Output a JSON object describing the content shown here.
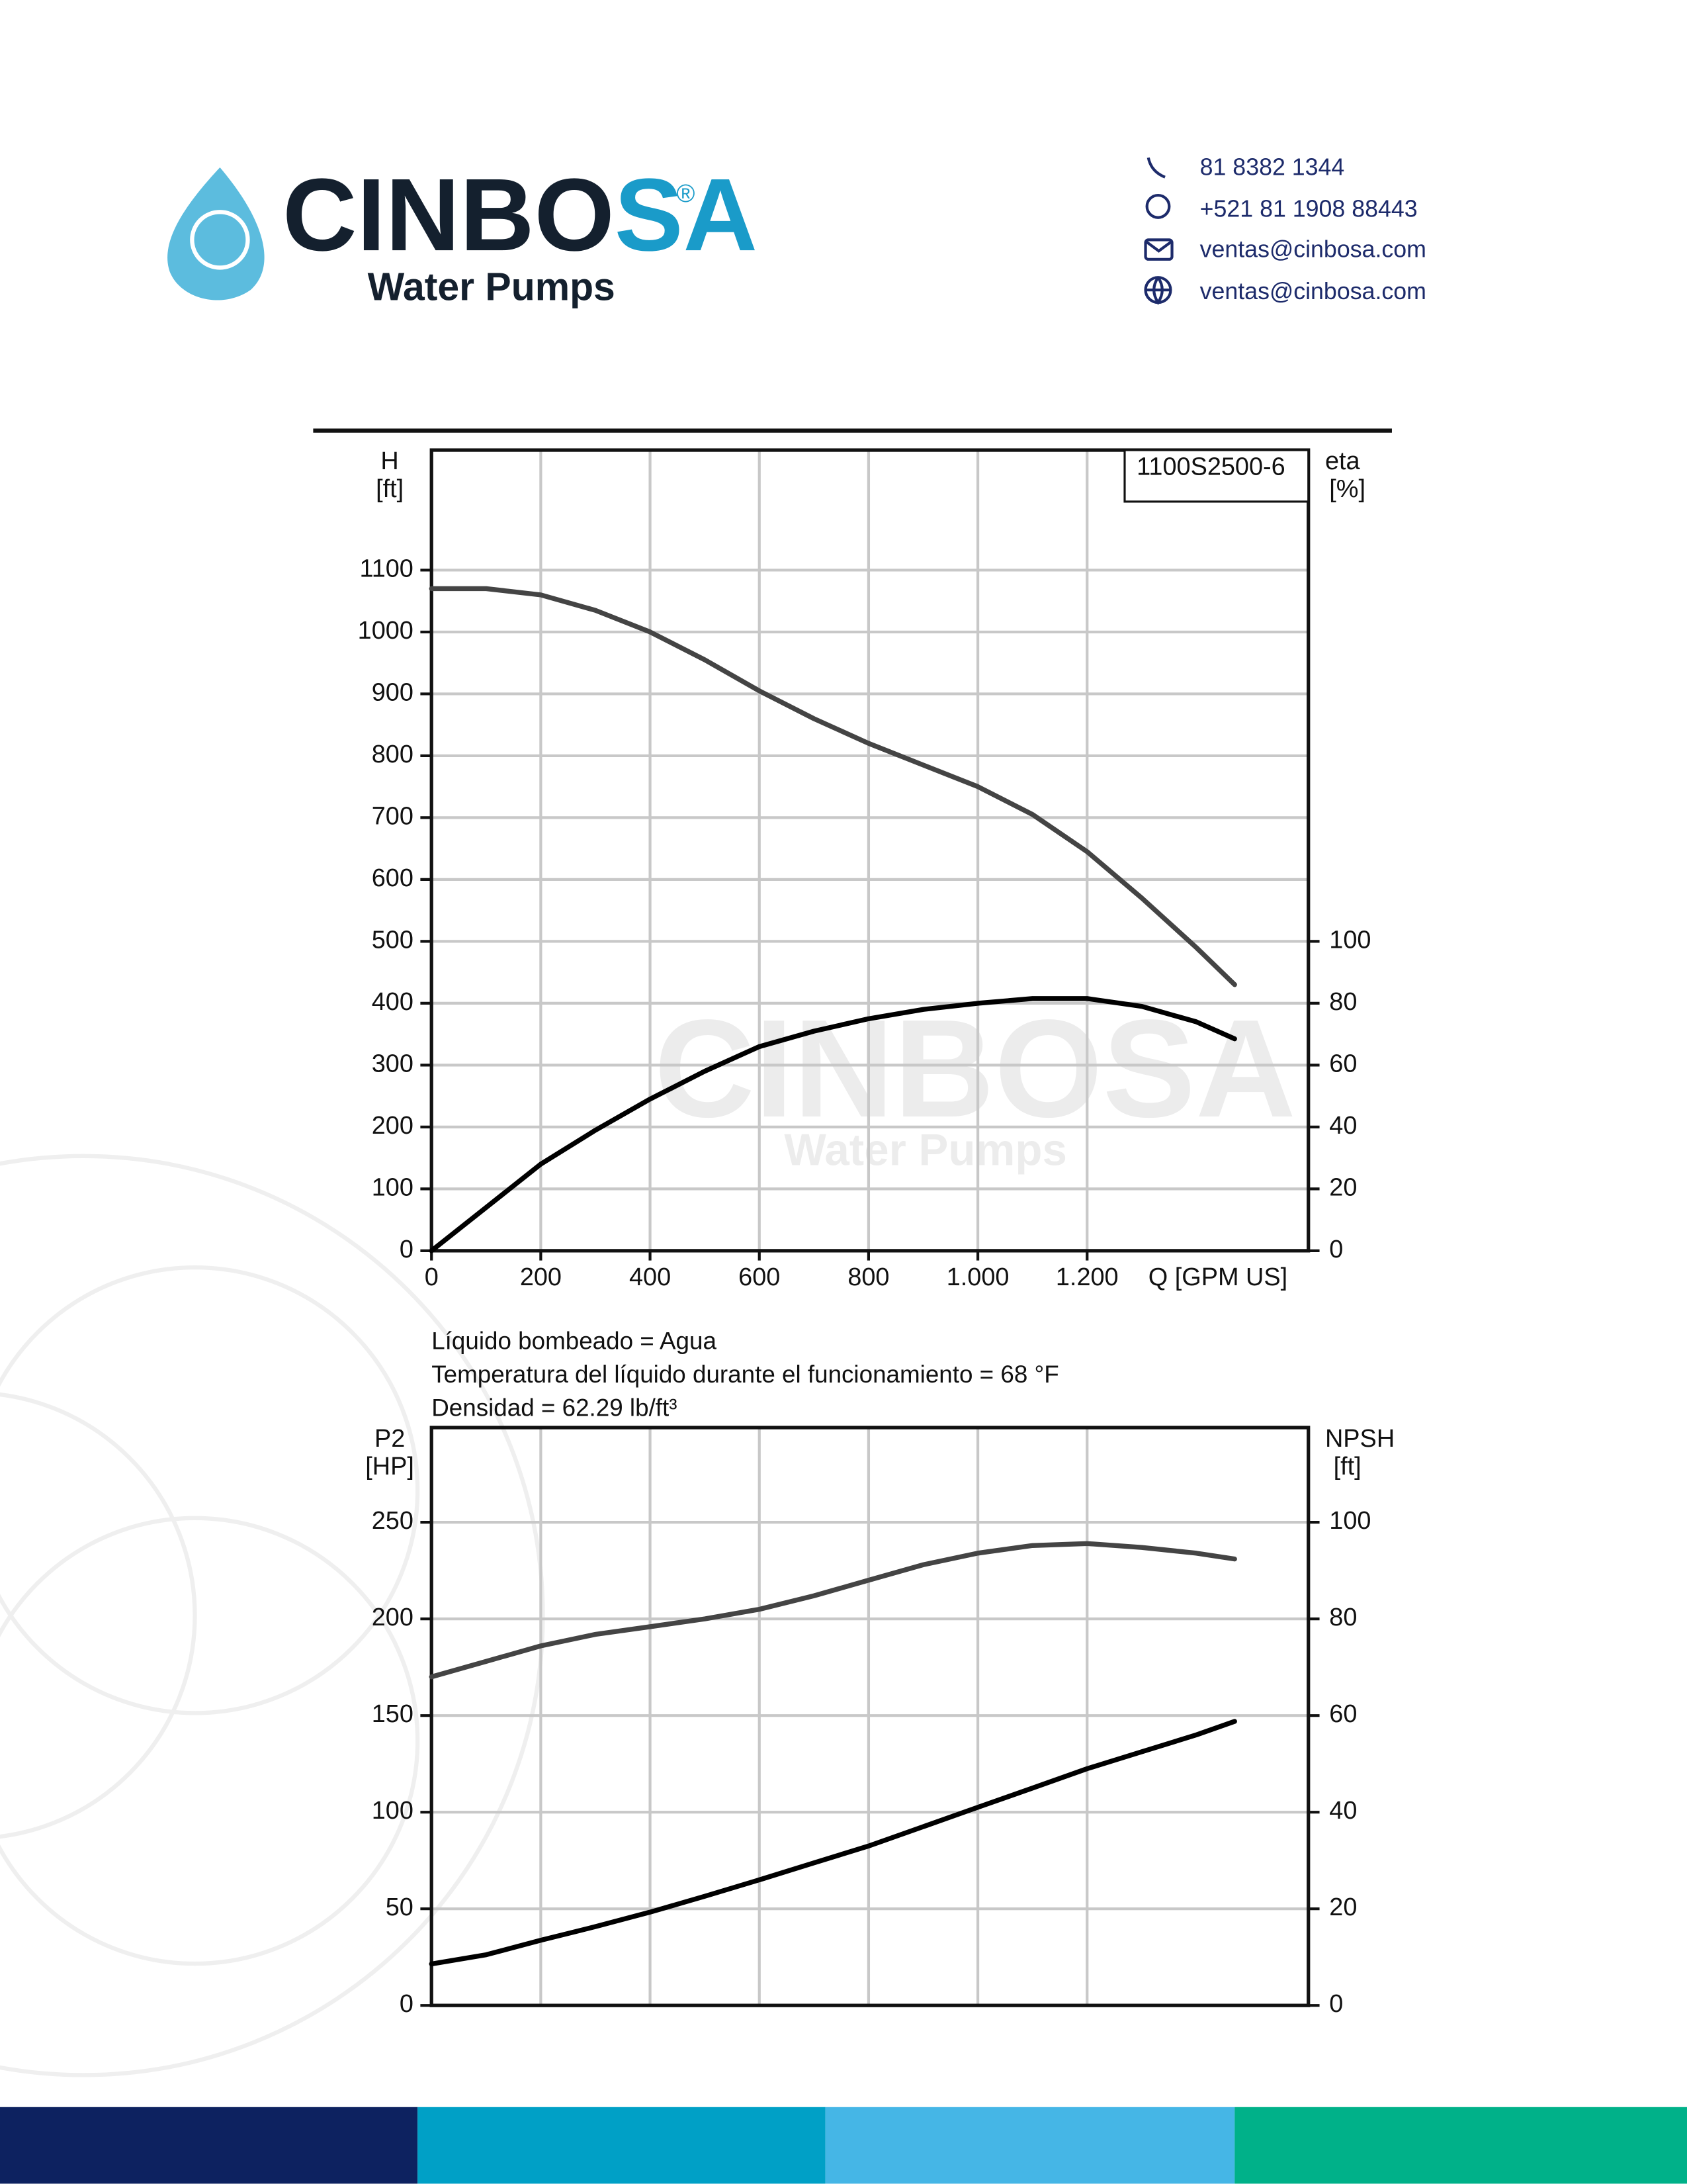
{
  "header": {
    "brand_parts": [
      "CINBO",
      "SA"
    ],
    "registered": "®",
    "tagline": "Water Pumps",
    "contacts": [
      "81 8382 1344",
      "+521 81 1908 88443",
      "ventas@cinbosa.com",
      "ventas@cinbosa.com"
    ]
  },
  "notes": [
    "Líquido bombeado = Agua",
    "Temperatura del líquido durante el funcionamiento = 68 °F",
    "Densidad = 62.29 lb/ft³"
  ],
  "chart_data": [
    {
      "type": "line",
      "label": "1100S2500-6",
      "xlabel": "Q [GPM US]",
      "yunit": "[ft]",
      "y2unit": "[%]",
      "x": [
        0,
        100,
        200,
        300,
        400,
        500,
        600,
        700,
        800,
        900,
        1000,
        1100,
        1200,
        1300,
        1400,
        1470
      ],
      "xlim": [
        0,
        1605
      ],
      "xticks": [
        0,
        200,
        400,
        600,
        800,
        {
          "value": 1000,
          "label": "1.000"
        },
        {
          "value": 1200,
          "label": "1.200"
        }
      ],
      "ylim": [
        0,
        1294
      ],
      "yticks": [
        0,
        100,
        200,
        300,
        400,
        500,
        600,
        700,
        800,
        900,
        1000,
        1100
      ],
      "y2lim": [
        0,
        258.8
      ],
      "y2ticks": [
        0,
        20,
        40,
        60,
        80,
        100
      ],
      "grid": true,
      "series": [
        {
          "name": "H",
          "color": "#444444",
          "values": [
            1070,
            1070,
            1060,
            1035,
            1000,
            955,
            905,
            860,
            820,
            785,
            750,
            705,
            645,
            570,
            490,
            430
          ]
        },
        {
          "name": "eta",
          "color": "#000000",
          "axis": "y2",
          "values": [
            0,
            14,
            28,
            39,
            49,
            58,
            66,
            71,
            75,
            78,
            80,
            81.5,
            81.5,
            79,
            74,
            68.5
          ]
        }
      ]
    },
    {
      "type": "line",
      "yunit": "[HP]",
      "y2unit": "[ft]",
      "x": [
        0,
        100,
        200,
        300,
        400,
        500,
        600,
        700,
        800,
        900,
        1000,
        1100,
        1200,
        1300,
        1400,
        1470
      ],
      "xlim": [
        0,
        1605
      ],
      "ylim": [
        0,
        299
      ],
      "yticks": [
        0,
        50,
        100,
        150,
        200,
        250
      ],
      "y2lim": [
        0,
        119.6
      ],
      "y2ticks": [
        0,
        20,
        40,
        60,
        80,
        100
      ],
      "grid": true,
      "series": [
        {
          "name": "P2",
          "color": "#444444",
          "values": [
            170,
            178,
            186,
            192,
            196,
            200,
            205,
            212,
            220,
            228,
            234,
            238,
            239,
            237,
            234,
            231
          ]
        },
        {
          "name": "NPSH",
          "color": "#000000",
          "axis": "y2",
          "values": [
            8.6,
            10.5,
            13.5,
            16.3,
            19.3,
            22.6,
            26,
            29.5,
            33,
            37,
            41,
            45,
            49,
            52.5,
            56,
            58.8
          ]
        }
      ]
    }
  ]
}
